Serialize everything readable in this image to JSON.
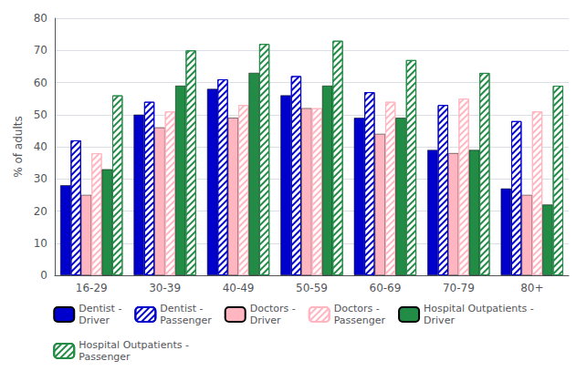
{
  "chart_data": {
    "type": "bar",
    "categories": [
      "16-29",
      "30-39",
      "40-49",
      "50-59",
      "60-69",
      "70-79",
      "80+"
    ],
    "series": [
      {
        "name": "Dentist -\nDriver",
        "color": "#0000CC",
        "values": [
          28,
          50,
          58,
          56,
          49,
          39,
          27
        ]
      },
      {
        "name": "Dentist -\nPassenger",
        "color": "#0000CC",
        "values": [
          42,
          54,
          61,
          62,
          57,
          53,
          48
        ]
      },
      {
        "name": "Doctors -\nDriver",
        "color": "#FFB6C1",
        "values": [
          25,
          46,
          49,
          52,
          44,
          38,
          25
        ]
      },
      {
        "name": "Doctors -\nPassenger",
        "color": "#FFB6C1",
        "values": [
          38,
          51,
          53,
          52,
          54,
          55,
          51
        ]
      },
      {
        "name": "Hospital Outpatients -\nDriver",
        "color": "#228B45",
        "values": [
          33,
          59,
          63,
          59,
          49,
          39,
          22
        ]
      },
      {
        "name": "Hospital Outpatients -\nPassenger",
        "color": "#228B45",
        "values": [
          56,
          70,
          72,
          73,
          67,
          63,
          59
        ]
      }
    ],
    "ylabel": "% of adults",
    "ylim": [
      0,
      80
    ],
    "yticks": [
      0,
      10,
      20,
      30,
      40,
      50,
      60,
      70,
      80
    ],
    "grid": true,
    "legend": "bottom"
  }
}
